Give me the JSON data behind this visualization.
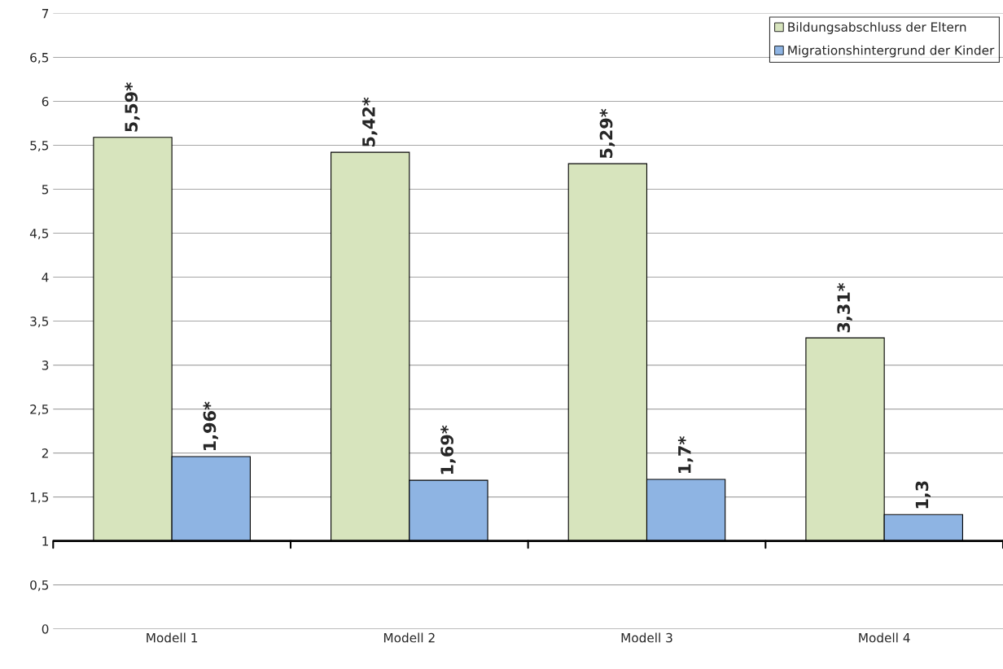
{
  "chart_data": {
    "type": "bar",
    "categories": [
      "Modell 1",
      "Modell 2",
      "Modell 3",
      "Modell 4"
    ],
    "series": [
      {
        "name": "Bildungsabschluss der Eltern",
        "color": "#d7e4bd",
        "values": [
          4.59,
          4.42,
          4.29,
          2.31
        ],
        "base": [
          1,
          1,
          1,
          1
        ],
        "value_labels": [
          "5,59*",
          "5,42*",
          "5,29*",
          "3,31*"
        ]
      },
      {
        "name": "Migrationshintergrund der Kinder",
        "color": "#8eb4e3",
        "values": [
          0.96,
          0.69,
          0.7,
          0.3
        ],
        "base": [
          1,
          1,
          1,
          1
        ],
        "value_labels": [
          "1,96*",
          "1,69*",
          "1,7*",
          "1,3"
        ]
      }
    ],
    "ylim": [
      0,
      7
    ],
    "yticks": [
      0,
      {
        "value": 0.5,
        "label": "0,5"
      },
      1,
      {
        "value": 1.5,
        "label": "1,5"
      },
      2,
      {
        "value": 2.5,
        "label": "2,5"
      },
      3,
      {
        "value": 3.5,
        "label": "3,5"
      },
      4,
      {
        "value": 4.5,
        "label": "4,5"
      },
      5,
      {
        "value": 5.5,
        "label": "5,5"
      },
      6,
      {
        "value": 6.5,
        "label": "6,5"
      },
      7
    ],
    "ref_lines": [
      {
        "axis": "y",
        "value": 1,
        "color": "#000000"
      }
    ],
    "grid": "y",
    "legend": "top right"
  }
}
